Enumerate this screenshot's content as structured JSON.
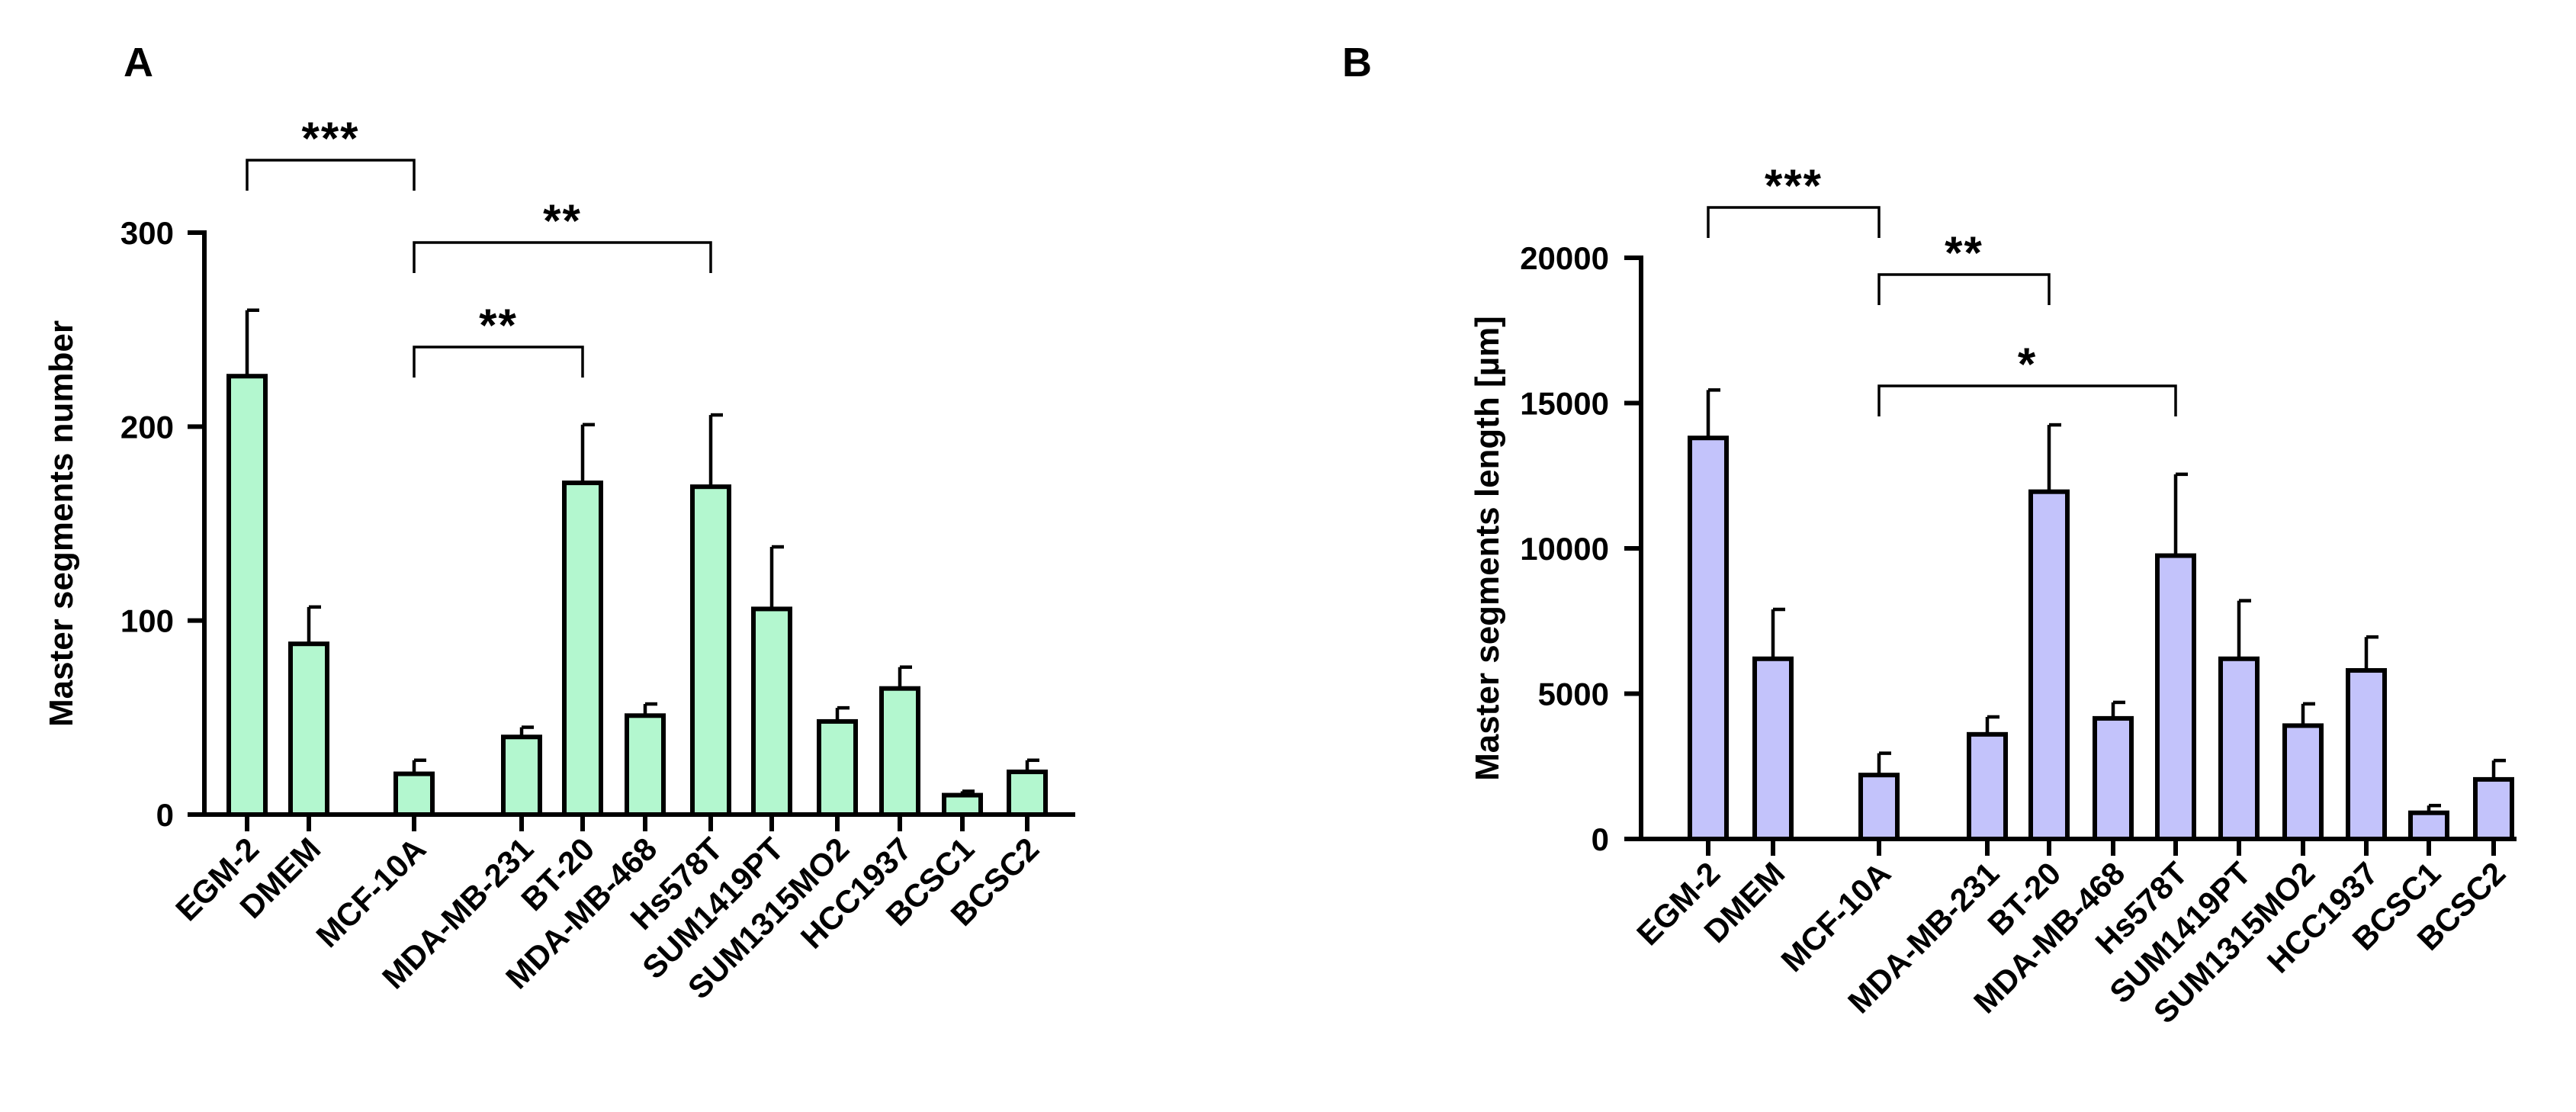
{
  "chart_data": [
    {
      "panel_label": "A",
      "type": "bar",
      "ylabel": "Master segments number",
      "xlabel": "",
      "ylim": [
        0,
        300
      ],
      "yticks": [
        "0",
        "100",
        "200",
        "300"
      ],
      "categories": [
        "EGM-2",
        "DMEM",
        "MCF-10A",
        "MDA-MB-231",
        "BT-20",
        "MDA-MB-468",
        "Hs578T",
        "SUM1419PT",
        "SUM1315MO2",
        "HCC1937",
        "BCSC1",
        "BCSC2"
      ],
      "values": [
        226,
        88,
        21,
        40,
        171,
        51,
        169,
        106,
        48,
        65,
        10,
        22
      ],
      "errors": [
        34,
        19,
        7,
        5,
        30,
        6,
        37,
        32,
        7,
        11,
        2,
        6
      ],
      "bar_color": "#b3f7cf",
      "annotations": [
        {
          "from": "EGM-2",
          "to": "MCF-10A",
          "label": "***",
          "level": 0
        },
        {
          "from": "MCF-10A",
          "to": "Hs578T",
          "label": "**",
          "level": 1
        },
        {
          "from": "MCF-10A",
          "to": "BT-20",
          "label": "**",
          "level": 2
        }
      ]
    },
    {
      "panel_label": "B",
      "type": "bar",
      "ylabel": "Master segments length [µm]",
      "xlabel": "",
      "ylim": [
        0,
        20000
      ],
      "yticks": [
        "0",
        "5000",
        "10000",
        "15000",
        "20000"
      ],
      "categories": [
        "EGM-2",
        "DMEM",
        "MCF-10A",
        "MDA-MB-231",
        "BT-20",
        "MDA-MB-468",
        "Hs578T",
        "SUM1419PT",
        "SUM1315MO2",
        "HCC1937",
        "BCSC1",
        "BCSC2"
      ],
      "values": [
        13800,
        6200,
        2200,
        3600,
        11950,
        4150,
        9750,
        6200,
        3900,
        5800,
        900,
        2050
      ],
      "errors": [
        1650,
        1700,
        750,
        600,
        2300,
        550,
        2800,
        2000,
        750,
        1150,
        250,
        650
      ],
      "bar_color": "#c3c3fb",
      "annotations": [
        {
          "from": "EGM-2",
          "to": "MCF-10A",
          "label": "***",
          "level": 0
        },
        {
          "from": "MCF-10A",
          "to": "BT-20",
          "label": "**",
          "level": 1
        },
        {
          "from": "MCF-10A",
          "to": "Hs578T",
          "label": "*",
          "level": 2
        }
      ]
    }
  ]
}
